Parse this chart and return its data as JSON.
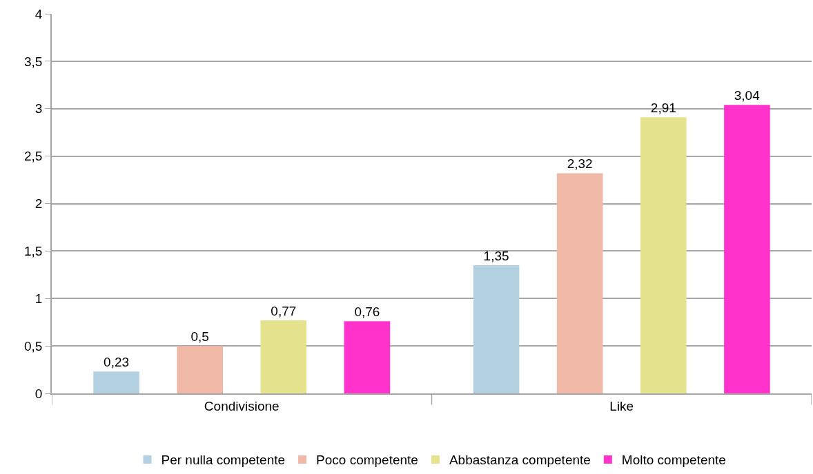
{
  "chart_data": {
    "type": "bar",
    "categories": [
      "Condivisione",
      "Like"
    ],
    "series": [
      {
        "name": "Per nulla competente",
        "color": "#b4d1e1",
        "values": [
          0.23,
          1.35
        ],
        "value_labels": [
          "0,23",
          "1,35"
        ]
      },
      {
        "name": "Poco competente",
        "color": "#f0b8a6",
        "values": [
          0.5,
          2.32
        ],
        "value_labels": [
          "0,5",
          "2,32"
        ]
      },
      {
        "name": "Abbastanza competente",
        "color": "#e6e38f",
        "values": [
          0.77,
          2.91
        ],
        "value_labels": [
          "0,77",
          "2,91"
        ]
      },
      {
        "name": "Molto competente",
        "color": "#ff33cc",
        "values": [
          0.76,
          3.04
        ],
        "value_labels": [
          "0,76",
          "3,04"
        ]
      }
    ],
    "ylim": [
      0,
      4
    ],
    "yticks": [
      0,
      {
        "value": 0.5,
        "label": "0,5"
      },
      1,
      {
        "value": 1.5,
        "label": "1,5"
      },
      2,
      {
        "value": 2.5,
        "label": "2,5"
      },
      3,
      {
        "value": 3.5,
        "label": "3,5"
      },
      4
    ],
    "grid": "y",
    "legend": "bottom"
  }
}
